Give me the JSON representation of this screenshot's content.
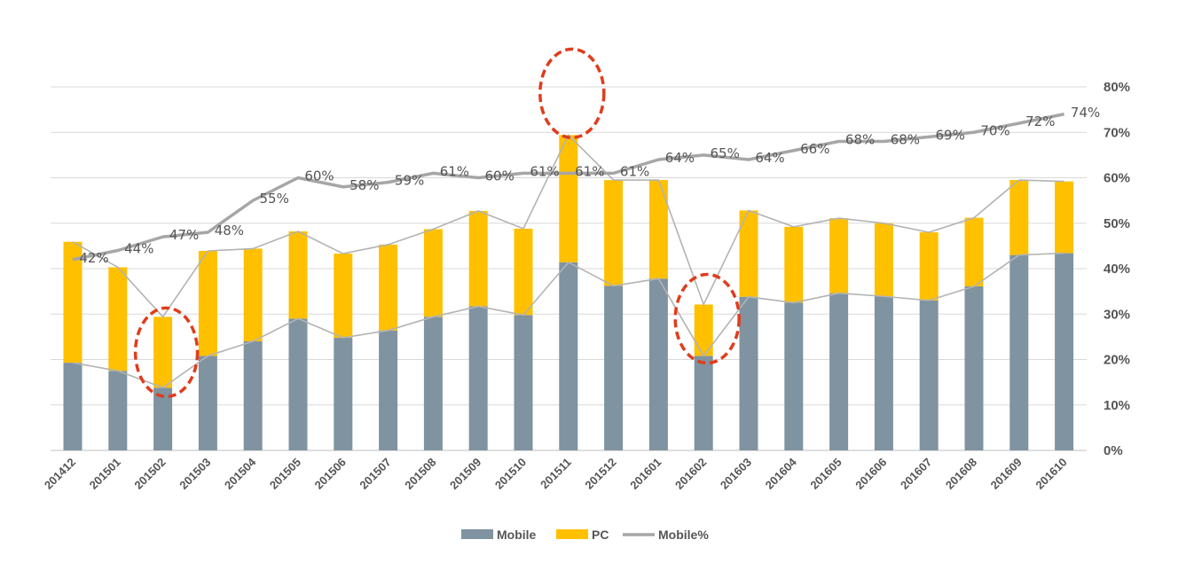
{
  "chart_data": {
    "type": "bar",
    "categories": [
      "201412",
      "201501",
      "201502",
      "201503",
      "201504",
      "201505",
      "201506",
      "201507",
      "201508",
      "201509",
      "201510",
      "201511",
      "201512",
      "201601",
      "201602",
      "201603",
      "201604",
      "201605",
      "201606",
      "201607",
      "201608",
      "201609",
      "201610"
    ],
    "series": [
      {
        "name": "Mobile",
        "kind": "stacked-bar",
        "color": "#7f93a1",
        "values": [
          19.3,
          17.5,
          13.8,
          20.8,
          24.0,
          29.0,
          24.8,
          26.4,
          29.4,
          31.7,
          29.8,
          41.4,
          36.2,
          37.8,
          20.8,
          33.8,
          32.5,
          34.6,
          33.9,
          33.0,
          36.1,
          43.0,
          43.4
        ]
      },
      {
        "name": "PC",
        "kind": "stacked-bar",
        "color": "#ffc000",
        "values": [
          26.6,
          22.8,
          15.6,
          23.1,
          20.4,
          19.2,
          18.5,
          18.9,
          19.3,
          21.0,
          19.0,
          28.0,
          23.3,
          21.7,
          11.3,
          19.0,
          16.7,
          16.5,
          16.1,
          15.0,
          15.1,
          16.5,
          15.8
        ]
      },
      {
        "name": "Mobile%",
        "kind": "line",
        "color": "#a6a6a6",
        "values": [
          42,
          44,
          47,
          48,
          55,
          60,
          58,
          59,
          61,
          60,
          61,
          61,
          61,
          64,
          65,
          64,
          66,
          68,
          68,
          69,
          70,
          72,
          74
        ],
        "labels": [
          "42%",
          "44%",
          "47%",
          "48%",
          "55%",
          "60%",
          "58%",
          "59%",
          "61%",
          "60%",
          "61%",
          "61%",
          "61%",
          "64%",
          "65%",
          "64%",
          "66%",
          "68%",
          "68%",
          "69%",
          "70%",
          "72%",
          "74%"
        ]
      }
    ],
    "right_axis": {
      "ticks": [
        "0%",
        "10%",
        "20%",
        "30%",
        "40%",
        "50%",
        "60%",
        "70%",
        "80%"
      ],
      "ylim": [
        0,
        80
      ]
    },
    "grid": true,
    "legend": {
      "placement": "bottom",
      "entries": [
        "Mobile",
        "PC",
        "Mobile%"
      ]
    },
    "annotations": [
      {
        "type": "dashed-ellipse",
        "color": "#e03c1c",
        "category": "201502"
      },
      {
        "type": "dashed-ellipse",
        "color": "#e03c1c",
        "category": "201511"
      },
      {
        "type": "dashed-ellipse",
        "color": "#e03c1c",
        "category": "201602"
      }
    ]
  }
}
